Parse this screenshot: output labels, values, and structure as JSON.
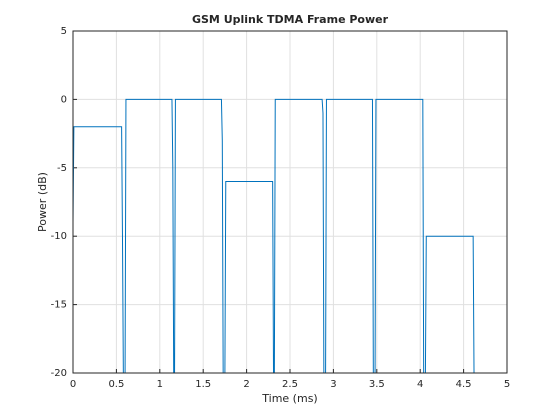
{
  "chart_data": {
    "type": "line",
    "title": "GSM Uplink TDMA Frame Power",
    "xlabel": "Time (ms)",
    "ylabel": "Power (dB)",
    "series": [
      {
        "color": "#0072bd",
        "x": [
          0,
          0.01,
          0.56,
          0.57,
          0.58,
          0.6,
          0.61,
          1.14,
          1.15,
          1.16,
          1.17,
          1.18,
          1.71,
          1.72,
          1.73,
          1.75,
          1.76,
          2.3,
          2.31,
          2.32,
          2.33,
          2.87,
          2.88,
          2.89,
          2.91,
          2.92,
          3.45,
          3.46,
          3.48,
          3.49,
          4.03,
          4.04,
          4.06,
          4.07,
          4.61,
          4.62
        ],
        "values": [
          -9,
          -2,
          -2,
          -10,
          -20,
          -20,
          0,
          0,
          -5,
          -20,
          -20,
          0,
          0,
          -3,
          -20,
          -20,
          -6,
          -6,
          -20,
          -20,
          0,
          0,
          -1,
          -20,
          -20,
          0,
          0,
          -20,
          -20,
          0,
          0,
          -20,
          -20,
          -10,
          -10,
          -20
        ]
      }
    ],
    "xlim": [
      0,
      5
    ],
    "ylim": [
      -20,
      5
    ],
    "xticks": [
      0,
      0.5,
      1,
      1.5,
      2,
      2.5,
      3,
      3.5,
      4,
      4.5,
      5
    ],
    "yticks": [
      -20,
      -15,
      -10,
      -5,
      0,
      5
    ],
    "grid": true
  }
}
